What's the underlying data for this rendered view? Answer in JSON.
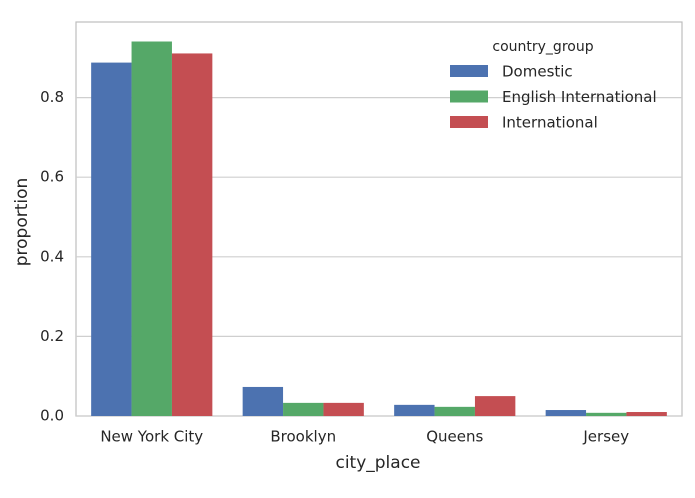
{
  "chart_data": {
    "type": "bar",
    "x_label": "city_place",
    "y_label": "proportion",
    "categories": [
      "New York City",
      "Brooklyn",
      "Queens",
      "Jersey"
    ],
    "legend_title": "country_group",
    "legend_position": "upper right",
    "series": [
      {
        "name": "Domestic",
        "color": "#4c72b0",
        "values": [
          0.888,
          0.073,
          0.028,
          0.015
        ]
      },
      {
        "name": "English International",
        "color": "#55a868",
        "values": [
          0.941,
          0.033,
          0.023,
          0.008
        ]
      },
      {
        "name": "International",
        "color": "#c44e52",
        "values": [
          0.911,
          0.033,
          0.05,
          0.01
        ]
      }
    ],
    "ylim": [
      0,
      0.99
    ],
    "yticks": [
      {
        "value": 0,
        "label": "0.0"
      },
      0.2,
      0.4,
      0.6,
      0.8
    ],
    "grid": true
  }
}
